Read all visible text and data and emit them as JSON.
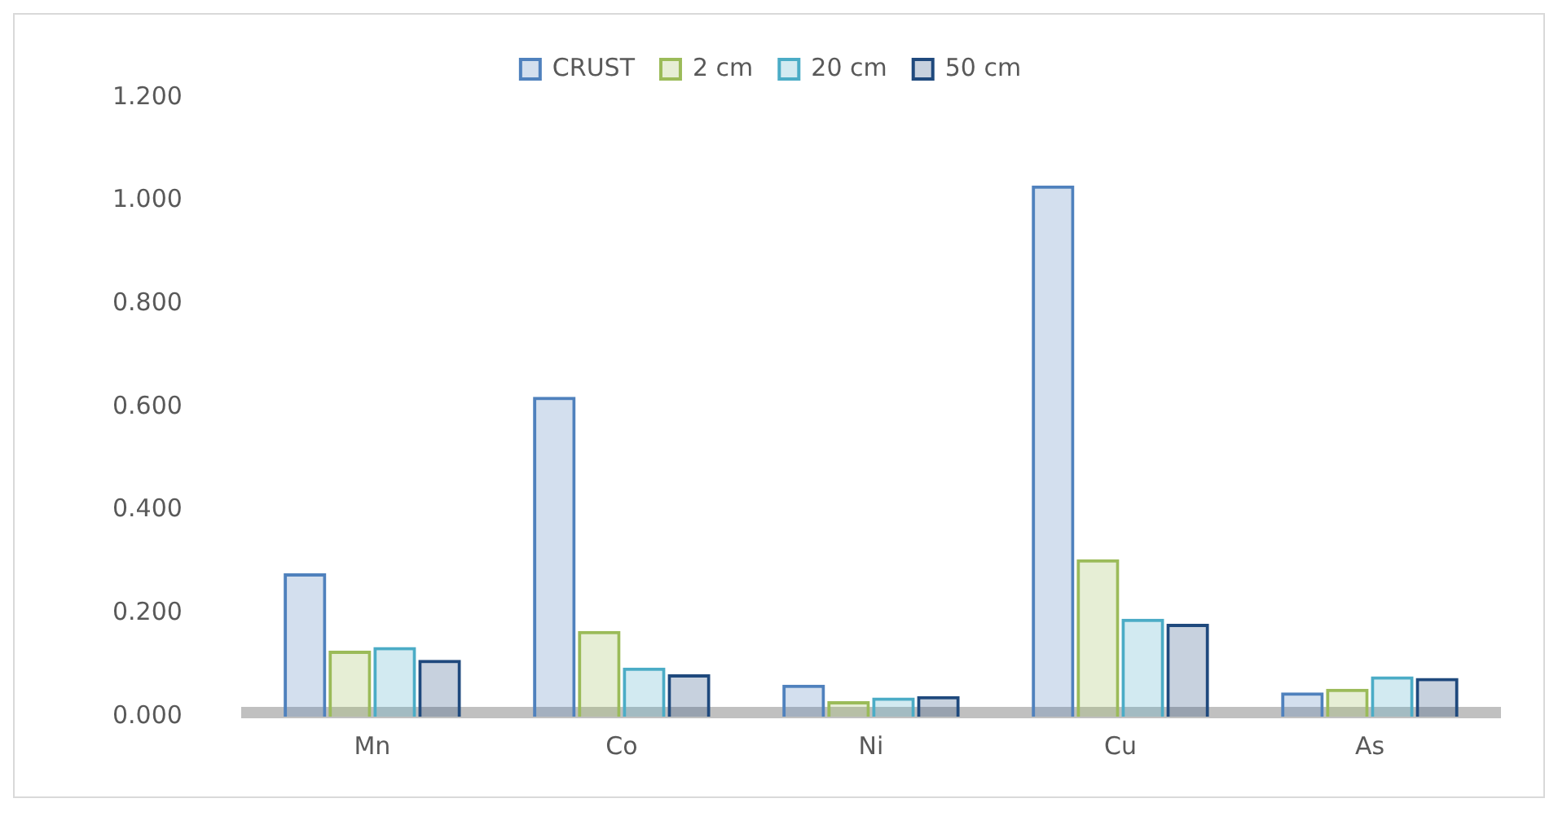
{
  "chart_data": {
    "type": "bar",
    "categories": [
      "Mn",
      "Co",
      "Ni",
      "Cu",
      "As"
    ],
    "series": [
      {
        "name": "CRUST",
        "color": "#4f81bd",
        "values": [
          0.278,
          0.62,
          0.062,
          1.03,
          0.047
        ]
      },
      {
        "name": "2 cm",
        "color": "#9bbb59",
        "values": [
          0.128,
          0.166,
          0.03,
          0.305,
          0.054
        ]
      },
      {
        "name": "20 cm",
        "color": "#4bacc6",
        "values": [
          0.135,
          0.095,
          0.037,
          0.19,
          0.078
        ]
      },
      {
        "name": "50 cm",
        "color": "#1f497d",
        "values": [
          0.11,
          0.082,
          0.04,
          0.18,
          0.075
        ]
      }
    ],
    "ylim": [
      0,
      1.2
    ],
    "yticks": [
      {
        "value": 0,
        "label": "0.000"
      },
      {
        "value": 0.2,
        "label": "0.200"
      },
      {
        "value": 0.4,
        "label": "0.400"
      },
      {
        "value": 0.6,
        "label": "0.600"
      },
      {
        "value": 0.8,
        "label": "0.800"
      },
      {
        "value": 1,
        "label": "1.000"
      },
      {
        "value": 1.2,
        "label": "1.200"
      }
    ],
    "grid": false,
    "legend": "top"
  }
}
